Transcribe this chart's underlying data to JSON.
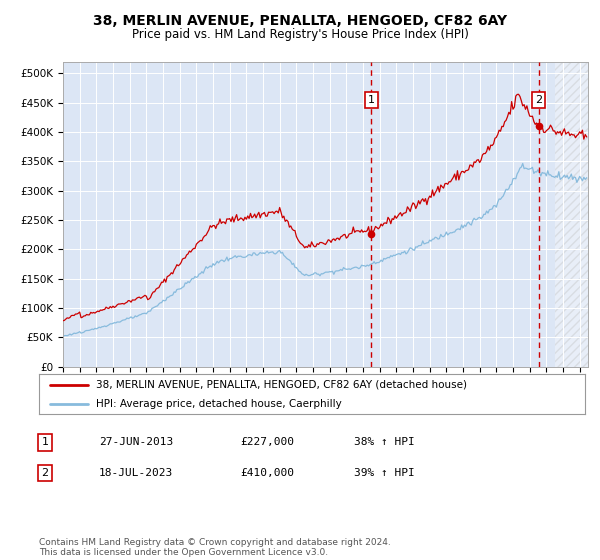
{
  "title": "38, MERLIN AVENUE, PENALLTA, HENGOED, CF82 6AY",
  "subtitle": "Price paid vs. HM Land Registry's House Price Index (HPI)",
  "ylabel_ticks": [
    "£0",
    "£50K",
    "£100K",
    "£150K",
    "£200K",
    "£250K",
    "£300K",
    "£350K",
    "£400K",
    "£450K",
    "£500K"
  ],
  "ytick_vals": [
    0,
    50000,
    100000,
    150000,
    200000,
    250000,
    300000,
    350000,
    400000,
    450000,
    500000
  ],
  "ylim": [
    0,
    520000
  ],
  "xlim_start": 1995.0,
  "xlim_end": 2026.5,
  "background_color": "#dce6f5",
  "line1_color": "#cc0000",
  "line2_color": "#88bbdd",
  "grid_color": "#ffffff",
  "vline_color": "#cc0000",
  "marker1_date": 2013.49,
  "marker2_date": 2023.54,
  "marker1_price": 227000,
  "marker2_price": 410000,
  "legend_line1": "38, MERLIN AVENUE, PENALLTA, HENGOED, CF82 6AY (detached house)",
  "legend_line2": "HPI: Average price, detached house, Caerphilly",
  "table_row1": [
    "1",
    "27-JUN-2013",
    "£227,000",
    "38% ↑ HPI"
  ],
  "table_row2": [
    "2",
    "18-JUL-2023",
    "£410,000",
    "39% ↑ HPI"
  ],
  "footnote": "Contains HM Land Registry data © Crown copyright and database right 2024.\nThis data is licensed under the Open Government Licence v3.0.",
  "hatch_start": 2024.5,
  "title_fontsize": 10,
  "subtitle_fontsize": 8.5,
  "tick_fontsize": 7.5,
  "legend_fontsize": 7.5,
  "table_fontsize": 8
}
